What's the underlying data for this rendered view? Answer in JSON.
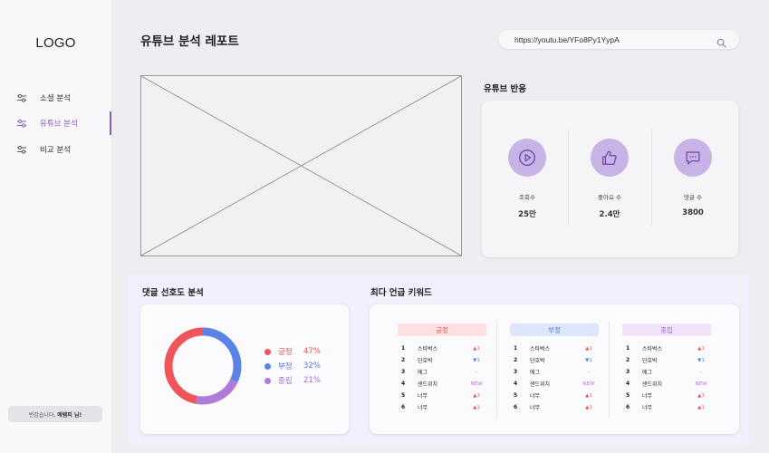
{
  "sidebar": {
    "logo": "LOGO",
    "items": [
      {
        "label": "소셜 분석",
        "active": false
      },
      {
        "label": "유튜브 분석",
        "active": true
      },
      {
        "label": "비교 분석",
        "active": false
      }
    ],
    "greeting_prefix": "반갑습니다,",
    "greeting_name": "예렘피 님!"
  },
  "header": {
    "title": "유튜브 분석 레포트",
    "url_value": "https://youtu.be/YFo8Py1YypA"
  },
  "reaction": {
    "title": "유튜브 반응",
    "items": [
      {
        "label": "조회수",
        "value": "25만",
        "icon": "play-icon"
      },
      {
        "label": "좋아요 수",
        "value": "2.4만",
        "icon": "thumbs-up-icon"
      },
      {
        "label": "댓글 수",
        "value": "3800",
        "icon": "comment-icon"
      }
    ]
  },
  "sentiment": {
    "title": "댓글 선호도 분석",
    "legend": [
      {
        "name": "긍정",
        "percent": "47%",
        "value": 47,
        "color": "#f0555a"
      },
      {
        "name": "부정",
        "percent": "32%",
        "value": 32,
        "color": "#5b82e6"
      },
      {
        "name": "중립",
        "percent": "21%",
        "value": 21,
        "color": "#b07ad8"
      }
    ]
  },
  "keywords": {
    "title": "최다 언급 키워드",
    "columns": [
      {
        "header": "긍정",
        "bg": "#fde1e1",
        "fg": "#e05555",
        "rows": [
          {
            "rank": "1",
            "word": "스타벅스",
            "trend": "▲1",
            "dir": "up"
          },
          {
            "rank": "2",
            "word": "단호박",
            "trend": "▼1",
            "dir": "down"
          },
          {
            "rank": "3",
            "word": "에그",
            "trend": "-",
            "dir": "same"
          },
          {
            "rank": "4",
            "word": "샌드위치",
            "trend": "NEW",
            "dir": "new"
          },
          {
            "rank": "5",
            "word": "너무",
            "trend": "▲1",
            "dir": "up"
          },
          {
            "rank": "6",
            "word": "너무",
            "trend": "▲1",
            "dir": "up"
          }
        ]
      },
      {
        "header": "부정",
        "bg": "#dde6fb",
        "fg": "#5478d8",
        "rows": [
          {
            "rank": "1",
            "word": "스타벅스",
            "trend": "▲1",
            "dir": "up"
          },
          {
            "rank": "2",
            "word": "단호박",
            "trend": "▼1",
            "dir": "down"
          },
          {
            "rank": "3",
            "word": "에그",
            "trend": "-",
            "dir": "same"
          },
          {
            "rank": "4",
            "word": "샌드위치",
            "trend": "NEW",
            "dir": "new"
          },
          {
            "rank": "5",
            "word": "너무",
            "trend": "▲1",
            "dir": "up"
          },
          {
            "rank": "6",
            "word": "너무",
            "trend": "▲1",
            "dir": "up"
          }
        ]
      },
      {
        "header": "중립",
        "bg": "#f1e3fa",
        "fg": "#a46bcf",
        "rows": [
          {
            "rank": "1",
            "word": "스타벅스",
            "trend": "▲1",
            "dir": "up"
          },
          {
            "rank": "2",
            "word": "단호박",
            "trend": "▼1",
            "dir": "down"
          },
          {
            "rank": "3",
            "word": "에그",
            "trend": "-",
            "dir": "same"
          },
          {
            "rank": "4",
            "word": "샌드위치",
            "trend": "NEW",
            "dir": "new"
          },
          {
            "rank": "5",
            "word": "너무",
            "trend": "▲1",
            "dir": "up"
          },
          {
            "rank": "6",
            "word": "너무",
            "trend": "▲1",
            "dir": "up"
          }
        ]
      }
    ]
  }
}
